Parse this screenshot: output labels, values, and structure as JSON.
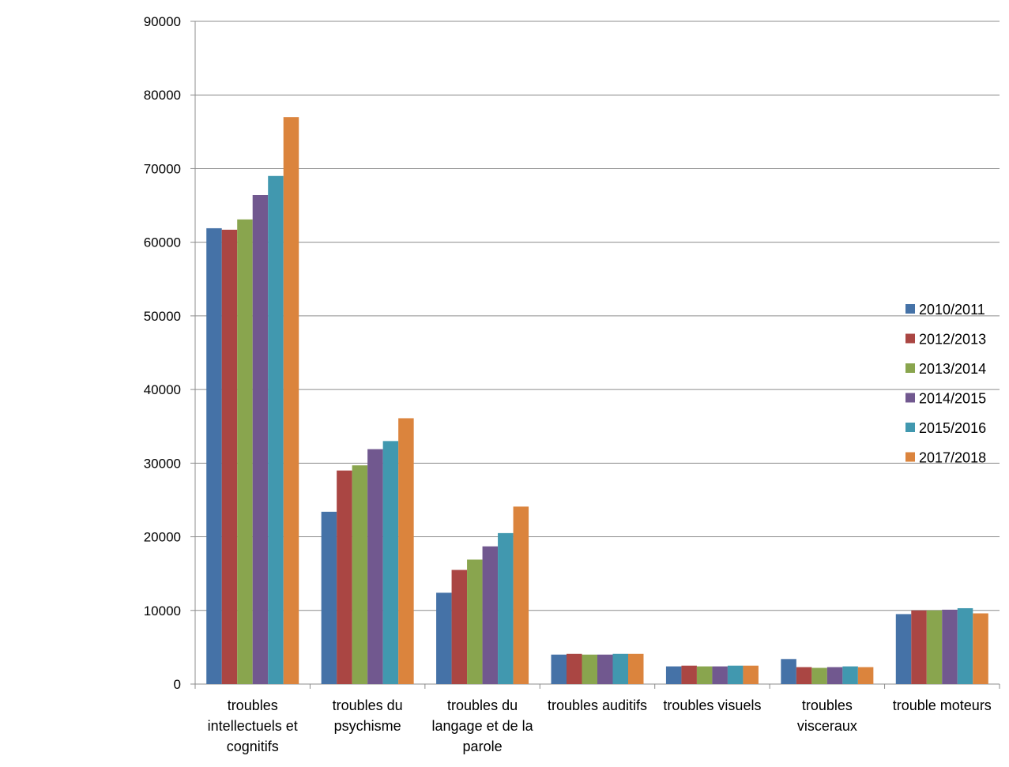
{
  "chart_data": {
    "type": "bar",
    "title": "",
    "xlabel": "",
    "ylabel": "",
    "ylim": [
      0,
      90000
    ],
    "yticks": [
      0,
      10000,
      20000,
      30000,
      40000,
      50000,
      60000,
      70000,
      80000,
      90000
    ],
    "grid": true,
    "legend_position": "right",
    "categories": [
      [
        "troubles",
        "intellectuels et",
        "cognitifs"
      ],
      [
        "troubles du",
        "psychisme"
      ],
      [
        "troubles du",
        "langage et de la",
        "parole"
      ],
      [
        "troubles auditifs"
      ],
      [
        "troubles visuels"
      ],
      [
        "troubles",
        "visceraux"
      ],
      [
        "trouble moteurs"
      ]
    ],
    "series": [
      {
        "name": "2010/2011",
        "color": "#4572A7",
        "values": [
          61900,
          23400,
          12400,
          4000,
          2400,
          3400,
          9500
        ]
      },
      {
        "name": "2012/2013",
        "color": "#AA4643",
        "values": [
          61700,
          29000,
          15500,
          4100,
          2500,
          2300,
          10000
        ]
      },
      {
        "name": "2013/2014",
        "color": "#89A54E",
        "values": [
          63100,
          29700,
          16900,
          4000,
          2400,
          2200,
          10000
        ]
      },
      {
        "name": "2014/2015",
        "color": "#71588F",
        "values": [
          66400,
          31900,
          18700,
          4000,
          2400,
          2300,
          10100
        ]
      },
      {
        "name": "2015/2016",
        "color": "#4198AF",
        "values": [
          69000,
          33000,
          20500,
          4100,
          2500,
          2400,
          10300
        ]
      },
      {
        "name": "2017/2018",
        "color": "#DB843D",
        "values": [
          77000,
          36100,
          24100,
          4100,
          2500,
          2300,
          9600
        ]
      }
    ]
  }
}
